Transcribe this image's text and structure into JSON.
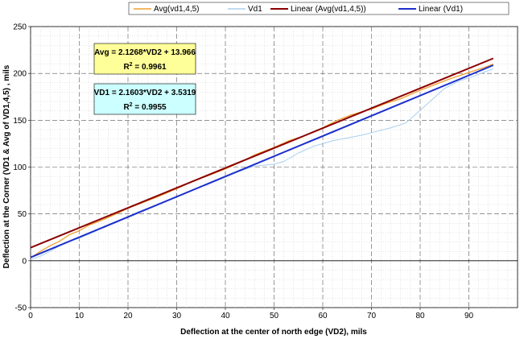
{
  "chart_data": {
    "type": "line",
    "xlabel": "Deflection at the center of north edge (VD2), mils",
    "ylabel": "Deflection at the Corner (VD1 & Avg of VD1,4,5) , mils",
    "xlim": [
      0,
      100
    ],
    "ylim": [
      -50,
      250
    ],
    "x_ticks": [
      0,
      10,
      20,
      30,
      40,
      50,
      60,
      70,
      80,
      90
    ],
    "y_ticks": [
      -50,
      0,
      50,
      100,
      150,
      200,
      250
    ],
    "grid": true,
    "legend_position": "top",
    "series": [
      {
        "name": "Avg(vd1,4,5)",
        "color": "#F0A030",
        "width": 1.3,
        "x": [
          0,
          2,
          4,
          6,
          8,
          10,
          12,
          15,
          18,
          20,
          23,
          26,
          30,
          33,
          36,
          40,
          43,
          46,
          50,
          53,
          56,
          60,
          63,
          66,
          70,
          73,
          76,
          80,
          83,
          86,
          90,
          93,
          95
        ],
        "y": [
          3,
          10,
          16,
          21,
          28,
          32,
          38,
          44,
          51,
          56,
          62,
          68,
          77,
          84,
          90,
          98,
          105,
          113,
          121,
          128,
          133,
          142,
          150,
          156,
          162,
          168,
          173,
          182,
          188,
          194,
          201,
          206,
          210
        ]
      },
      {
        "name": "Vd1",
        "color": "#A8CFEE",
        "width": 1.0,
        "x": [
          0,
          2,
          4,
          6,
          8,
          10,
          14,
          18,
          22,
          26,
          30,
          34,
          38,
          42,
          46,
          50,
          52,
          55,
          58,
          62,
          65,
          68,
          71,
          74,
          77,
          79,
          82,
          85,
          88,
          91,
          93,
          95
        ],
        "y": [
          1,
          5,
          10,
          16,
          21,
          24,
          33,
          42,
          52,
          60,
          68,
          77,
          86,
          94,
          101,
          103,
          106,
          115,
          122,
          128,
          131,
          134,
          138,
          142,
          147,
          156,
          170,
          184,
          192,
          197,
          201,
          205
        ]
      },
      {
        "name": "Linear (Avg(vd1,4,5))",
        "color": "#8B0000",
        "width": 2.0,
        "x": [
          0,
          95
        ],
        "y": [
          13.966,
          216.01
        ]
      },
      {
        "name": "Linear (Vd1)",
        "color": "#1C2FCC",
        "width": 2.0,
        "x": [
          0,
          95
        ],
        "y": [
          3.5319,
          208.76
        ]
      }
    ],
    "annotations": [
      {
        "equation": "Avg = 2.1268*VD2 + 13.966",
        "r_label": "R",
        "r_sup": "2",
        "r_value": " = 0.9961",
        "fill": "#FFFF99"
      },
      {
        "equation": "VD1 = 2.1603*VD2 + 3.5319",
        "r_label": "R",
        "r_sup": "2",
        "r_value": " = 0.9955",
        "fill": "#CCFFFF"
      }
    ]
  }
}
